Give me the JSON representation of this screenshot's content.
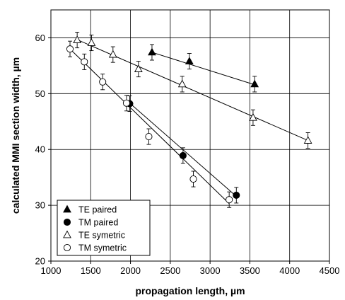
{
  "chart_data": {
    "type": "scatter",
    "title": "",
    "xlabel": "propagation length, µm",
    "ylabel": "calculated MMI section width, µm",
    "xlim": [
      1000,
      4500
    ],
    "ylim": [
      20,
      65
    ],
    "xticks": [
      "1000",
      "1500",
      "2000",
      "2500",
      "3000",
      "3500",
      "4000",
      "4500"
    ],
    "yticks": [
      "20",
      "30",
      "40",
      "50",
      "60"
    ],
    "grid": true,
    "legend_position": "bottom-left",
    "error_bar": 1.4,
    "series": [
      {
        "name": "TE paired",
        "marker": "filled-triangle",
        "points": [
          [
            2270,
            57.4
          ],
          [
            2740,
            55.8
          ],
          [
            3560,
            51.7
          ]
        ],
        "fit": [
          [
            2270,
            57.4
          ],
          [
            3560,
            51.6
          ]
        ]
      },
      {
        "name": "TM paired",
        "marker": "filled-circle",
        "points": [
          [
            1990,
            48.2
          ],
          [
            2660,
            38.9
          ],
          [
            3330,
            31.8
          ]
        ],
        "fit": [
          [
            1950,
            48.8
          ],
          [
            3330,
            31.6
          ]
        ]
      },
      {
        "name": "TE symetric",
        "marker": "open-triangle",
        "points": [
          [
            1330,
            59.6
          ],
          [
            1510,
            59.1
          ],
          [
            1780,
            57.0
          ],
          [
            2100,
            54.4
          ],
          [
            2650,
            51.7
          ],
          [
            3540,
            45.7
          ],
          [
            4230,
            41.6
          ]
        ],
        "fit": [
          [
            1310,
            59.8
          ],
          [
            4230,
            41.6
          ]
        ]
      },
      {
        "name": "TM symetric",
        "marker": "open-circle",
        "points": [
          [
            1240,
            58.0
          ],
          [
            1420,
            55.7
          ],
          [
            1650,
            52.1
          ],
          [
            1950,
            48.3
          ],
          [
            2230,
            42.3
          ],
          [
            2790,
            34.7
          ],
          [
            3240,
            31.0
          ]
        ],
        "fit": [
          [
            1240,
            58.0
          ],
          [
            3240,
            30.3
          ]
        ]
      }
    ]
  }
}
